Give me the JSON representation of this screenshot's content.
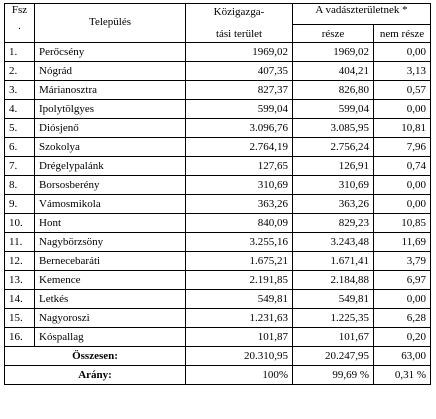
{
  "headers": {
    "fsz_line1": "Fsz",
    "fsz_line2": ".",
    "telepules": "Település",
    "kozig_line1": "Közigazga-",
    "kozig_line2": "tási terület",
    "vadasz": "A vadászterületnek *",
    "resze": "része",
    "nem_resze": "nem része"
  },
  "rows": [
    {
      "no": "1.",
      "name": "Perőcsény",
      "area": "1969,02",
      "part": "1969,02",
      "notpart": "0,00"
    },
    {
      "no": "2.",
      "name": "Nógrád",
      "area": "407,35",
      "part": "404,21",
      "notpart": "3,13"
    },
    {
      "no": "3.",
      "name": "Márianosztra",
      "area": "827,37",
      "part": "826,80",
      "notpart": "0,57"
    },
    {
      "no": "4.",
      "name": "Ipolytölgyes",
      "area": "599,04",
      "part": "599,04",
      "notpart": "0,00"
    },
    {
      "no": "5.",
      "name": "Diósjenő",
      "area": "3.096,76",
      "part": "3.085,95",
      "notpart": "10,81"
    },
    {
      "no": "6.",
      "name": "Szokolya",
      "area": "2.764,19",
      "part": "2.756,24",
      "notpart": "7,96"
    },
    {
      "no": "7.",
      "name": "Drégelypalánk",
      "area": "127,65",
      "part": "126,91",
      "notpart": "0,74"
    },
    {
      "no": "8.",
      "name": "Borsosberény",
      "area": "310,69",
      "part": "310,69",
      "notpart": "0,00"
    },
    {
      "no": "9.",
      "name": "Vámosmikola",
      "area": "363,26",
      "part": "363,26",
      "notpart": "0,00"
    },
    {
      "no": "10.",
      "name": "Hont",
      "area": "840,09",
      "part": "829,23",
      "notpart": "10,85"
    },
    {
      "no": "11.",
      "name": "Nagybörzsöny",
      "area": "3.255,16",
      "part": "3.243,48",
      "notpart": "11,69"
    },
    {
      "no": "12.",
      "name": "Bernecebaráti",
      "area": "1.675,21",
      "part": "1.671,41",
      "notpart": "3,79"
    },
    {
      "no": "13.",
      "name": "Kemence",
      "area": "2.191,85",
      "part": "2.184,88",
      "notpart": "6,97"
    },
    {
      "no": "14.",
      "name": "Letkés",
      "area": "549,81",
      "part": "549,81",
      "notpart": "0,00"
    },
    {
      "no": "15.",
      "name": "Nagyoroszi",
      "area": "1.231,63",
      "part": "1.225,35",
      "notpart": "6,28"
    },
    {
      "no": "16.",
      "name": "Kóspallag",
      "area": "101,87",
      "part": "101,67",
      "notpart": "0,20"
    }
  ],
  "total": {
    "label": "Összesen:",
    "area": "20.310,95",
    "part": "20.247,95",
    "notpart": "63,00"
  },
  "ratio": {
    "label": "Arány:",
    "area": "100%",
    "part": "99,69 %",
    "notpart": "0,31 %"
  }
}
